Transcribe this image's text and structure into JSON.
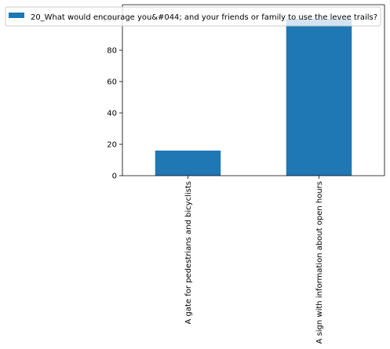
{
  "chart_data": {
    "type": "bar",
    "categories": [
      "A gate for pedestrians and bicyclists",
      "A sign with information about open hours"
    ],
    "series": [
      {
        "name": "20_What would encourage you&#044; and your friends or family to use the levee trails?",
        "values": [
          16,
          100
        ]
      }
    ],
    "title": "",
    "xlabel": "",
    "ylabel": "",
    "ylim": [
      0,
      109
    ],
    "yticks": [
      0,
      20,
      40,
      60,
      80,
      100
    ],
    "grid": false,
    "legend_position": "top"
  },
  "colors": {
    "bar": "#1f77b4",
    "axis": "#000000",
    "legend_border": "#cccccc"
  }
}
